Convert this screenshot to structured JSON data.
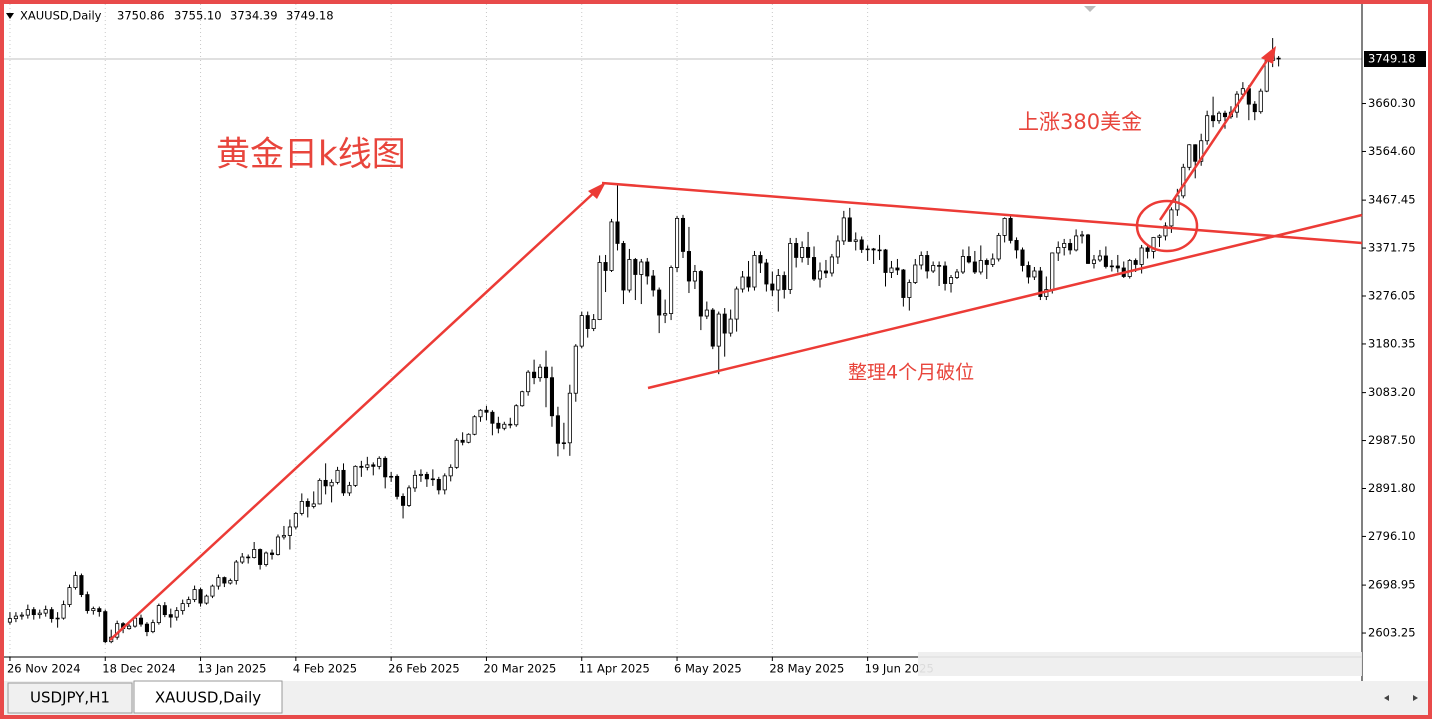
{
  "header": {
    "symbol": "XAUUSD,Daily",
    "ohlc_labels": [
      "3750.86",
      "3755.10",
      "3734.39",
      "3749.18"
    ]
  },
  "annotations": [
    "黄金日k线图",
    "上涨380美金",
    "整理4个月破位"
  ],
  "tabs": [
    "USDJPY,H1",
    "XAUUSD,Daily"
  ],
  "chart_data": {
    "type": "candlestick",
    "bull_color": "#ffffff",
    "bear_color": "#000000",
    "grid": true,
    "ylim": [
      2555.4,
      3851
    ],
    "xlim": [
      -1,
      227
    ],
    "yticks": [
      {
        "value": 3660.3,
        "label": "3660.30"
      },
      {
        "value": 3564.6,
        "label": "3564.60"
      },
      3467.45,
      3371.75,
      3276.05,
      3180.35,
      {
        "value": 3083.2,
        "label": "3083.20"
      },
      {
        "value": 2987.5,
        "label": "2987.50"
      },
      {
        "value": 2891.8,
        "label": "2891.80"
      },
      {
        "value": 2796.1,
        "label": "2796.10"
      },
      2698.95,
      2603.25
    ],
    "xticks": [
      {
        "value": 0,
        "label": "26 Nov 2024"
      },
      {
        "value": 16,
        "label": "18 Dec 2024"
      },
      {
        "value": 32,
        "label": "13 Jan 2025"
      },
      {
        "value": 48,
        "label": "4 Feb 2025"
      },
      {
        "value": 64,
        "label": "26 Feb 2025"
      },
      {
        "value": 80,
        "label": "20 Mar 2025"
      },
      {
        "value": 96,
        "label": "11 Apr 2025"
      },
      {
        "value": 112,
        "label": "6 May 2025"
      },
      {
        "value": 128,
        "label": "28 May 2025"
      },
      {
        "value": 144,
        "label": "19 Jun 2025"
      }
    ],
    "candles": [
      [
        2625,
        2645,
        2620,
        2632
      ],
      [
        2632,
        2645,
        2625,
        2637
      ],
      [
        2637,
        2645,
        2630,
        2639
      ],
      [
        2639,
        2660,
        2632,
        2650
      ],
      [
        2650,
        2655,
        2630,
        2640
      ],
      [
        2640,
        2650,
        2632,
        2643
      ],
      [
        2643,
        2658,
        2636,
        2650
      ],
      [
        2650,
        2655,
        2624,
        2632
      ],
      [
        2633,
        2645,
        2614,
        2633
      ],
      [
        2633,
        2668,
        2630,
        2660
      ],
      [
        2660,
        2700,
        2655,
        2694
      ],
      [
        2694,
        2726,
        2690,
        2718
      ],
      [
        2718,
        2722,
        2675,
        2680
      ],
      [
        2680,
        2686,
        2642,
        2648
      ],
      [
        2648,
        2656,
        2640,
        2652
      ],
      [
        2652,
        2656,
        2636,
        2646
      ],
      [
        2646,
        2650,
        2583,
        2586
      ],
      [
        2586,
        2610,
        2583,
        2595
      ],
      [
        2595,
        2628,
        2590,
        2622
      ],
      [
        2622,
        2625,
        2603,
        2612
      ],
      [
        2612,
        2621,
        2610,
        2617
      ],
      [
        2617,
        2638,
        2614,
        2633
      ],
      [
        2633,
        2640,
        2616,
        2621
      ],
      [
        2621,
        2625,
        2597,
        2606
      ],
      [
        2606,
        2630,
        2603,
        2624
      ],
      [
        2624,
        2662,
        2620,
        2658
      ],
      [
        2658,
        2665,
        2635,
        2640
      ],
      [
        2640,
        2652,
        2614,
        2635
      ],
      [
        2635,
        2655,
        2628,
        2648
      ],
      [
        2648,
        2670,
        2640,
        2662
      ],
      [
        2662,
        2676,
        2655,
        2670
      ],
      [
        2670,
        2698,
        2665,
        2690
      ],
      [
        2690,
        2694,
        2656,
        2663
      ],
      [
        2663,
        2680,
        2660,
        2677
      ],
      [
        2677,
        2700,
        2673,
        2697
      ],
      [
        2697,
        2720,
        2690,
        2714
      ],
      [
        2714,
        2716,
        2695,
        2703
      ],
      [
        2703,
        2712,
        2700,
        2708
      ],
      [
        2708,
        2749,
        2700,
        2745
      ],
      [
        2745,
        2763,
        2741,
        2755
      ],
      [
        2755,
        2760,
        2742,
        2754
      ],
      [
        2754,
        2785,
        2752,
        2770
      ],
      [
        2770,
        2772,
        2730,
        2740
      ],
      [
        2740,
        2766,
        2736,
        2763
      ],
      [
        2763,
        2770,
        2750,
        2760
      ],
      [
        2760,
        2800,
        2758,
        2795
      ],
      [
        2795,
        2817,
        2790,
        2798
      ],
      [
        2798,
        2830,
        2770,
        2815
      ],
      [
        2815,
        2845,
        2810,
        2842
      ],
      [
        2842,
        2882,
        2838,
        2866
      ],
      [
        2866,
        2872,
        2834,
        2856
      ],
      [
        2856,
        2886,
        2852,
        2861
      ],
      [
        2861,
        2912,
        2860,
        2908
      ],
      [
        2908,
        2942,
        2880,
        2897
      ],
      [
        2897,
        2910,
        2864,
        2904
      ],
      [
        2904,
        2935,
        2900,
        2928
      ],
      [
        2928,
        2942,
        2877,
        2883
      ],
      [
        2883,
        2905,
        2877,
        2898
      ],
      [
        2898,
        2938,
        2895,
        2936
      ],
      [
        2936,
        2947,
        2915,
        2934
      ],
      [
        2934,
        2955,
        2928,
        2939
      ],
      [
        2939,
        2944,
        2918,
        2936
      ],
      [
        2936,
        2956,
        2930,
        2952
      ],
      [
        2952,
        2956,
        2892,
        2915
      ],
      [
        2915,
        2925,
        2905,
        2916
      ],
      [
        2916,
        2920,
        2870,
        2876
      ],
      [
        2876,
        2882,
        2832,
        2858
      ],
      [
        2858,
        2898,
        2855,
        2893
      ],
      [
        2893,
        2928,
        2885,
        2918
      ],
      [
        2918,
        2930,
        2905,
        2920
      ],
      [
        2920,
        2925,
        2895,
        2911
      ],
      [
        2911,
        2930,
        2897,
        2910
      ],
      [
        2910,
        2915,
        2880,
        2889
      ],
      [
        2889,
        2922,
        2880,
        2917
      ],
      [
        2917,
        2940,
        2906,
        2934
      ],
      [
        2934,
        2992,
        2931,
        2988
      ],
      [
        2988,
        3004,
        2978,
        2984
      ],
      [
        2984,
        3002,
        2982,
        3000
      ],
      [
        3000,
        3038,
        2998,
        3035
      ],
      [
        3035,
        3050,
        3025,
        3048
      ],
      [
        3048,
        3057,
        3028,
        3044
      ],
      [
        3044,
        3048,
        2998,
        3022
      ],
      [
        3022,
        3035,
        3002,
        3012
      ],
      [
        3012,
        3025,
        3008,
        3020
      ],
      [
        3020,
        3033,
        3012,
        3019
      ],
      [
        3019,
        3060,
        3015,
        3057
      ],
      [
        3057,
        3087,
        3055,
        3085
      ],
      [
        3085,
        3128,
        3077,
        3124
      ],
      [
        3124,
        3149,
        3100,
        3113
      ],
      [
        3113,
        3140,
        3105,
        3134
      ],
      [
        3134,
        3167,
        3054,
        3113
      ],
      [
        3113,
        3135,
        3015,
        3037
      ],
      [
        3037,
        3055,
        2956,
        2982
      ],
      [
        2982,
        3023,
        2970,
        2983
      ],
      [
        2983,
        3099,
        2957,
        3082
      ],
      [
        3082,
        3180,
        3065,
        3176
      ],
      [
        3176,
        3245,
        3172,
        3237
      ],
      [
        3237,
        3245,
        3193,
        3211
      ],
      [
        3211,
        3240,
        3206,
        3229
      ],
      [
        3229,
        3357,
        3228,
        3343
      ],
      [
        3343,
        3358,
        3284,
        3327
      ],
      [
        3327,
        3430,
        3324,
        3424
      ],
      [
        3424,
        3500,
        3367,
        3381
      ],
      [
        3381,
        3386,
        3260,
        3288
      ],
      [
        3288,
        3370,
        3283,
        3349
      ],
      [
        3349,
        3352,
        3268,
        3319
      ],
      [
        3319,
        3350,
        3260,
        3344
      ],
      [
        3344,
        3352,
        3299,
        3316
      ],
      [
        3316,
        3328,
        3275,
        3288
      ],
      [
        3288,
        3293,
        3202,
        3238
      ],
      [
        3238,
        3269,
        3222,
        3241
      ],
      [
        3241,
        3337,
        3228,
        3333
      ],
      [
        3333,
        3436,
        3324,
        3431
      ],
      [
        3431,
        3438,
        3352,
        3365
      ],
      [
        3365,
        3414,
        3282,
        3306
      ],
      [
        3306,
        3338,
        3290,
        3325
      ],
      [
        3325,
        3328,
        3208,
        3236
      ],
      [
        3236,
        3265,
        3230,
        3248
      ],
      [
        3248,
        3252,
        3170,
        3176
      ],
      [
        3176,
        3245,
        3120,
        3240
      ],
      [
        3240,
        3252,
        3155,
        3202
      ],
      [
        3202,
        3249,
        3195,
        3230
      ],
      [
        3230,
        3295,
        3205,
        3290
      ],
      [
        3290,
        3326,
        3283,
        3314
      ],
      [
        3314,
        3346,
        3285,
        3294
      ],
      [
        3294,
        3366,
        3287,
        3357
      ],
      [
        3357,
        3365,
        3322,
        3342
      ],
      [
        3342,
        3350,
        3285,
        3300
      ],
      [
        3300,
        3325,
        3276,
        3288
      ],
      [
        3288,
        3330,
        3245,
        3317
      ],
      [
        3317,
        3325,
        3271,
        3289
      ],
      [
        3289,
        3392,
        3280,
        3381
      ],
      [
        3381,
        3392,
        3333,
        3353
      ],
      [
        3353,
        3385,
        3343,
        3373
      ],
      [
        3373,
        3404,
        3338,
        3353
      ],
      [
        3353,
        3375,
        3306,
        3310
      ],
      [
        3310,
        3343,
        3293,
        3326
      ],
      [
        3326,
        3348,
        3312,
        3322
      ],
      [
        3322,
        3360,
        3315,
        3354
      ],
      [
        3354,
        3397,
        3340,
        3386
      ],
      [
        3386,
        3446,
        3378,
        3432
      ],
      [
        3432,
        3452,
        3385,
        3385
      ],
      [
        3385,
        3403,
        3367,
        3388
      ],
      [
        3388,
        3395,
        3362,
        3369
      ],
      [
        3369,
        3377,
        3346,
        3370
      ],
      [
        3370,
        3372,
        3340,
        3368
      ],
      [
        3368,
        3398,
        3348,
        3368
      ],
      [
        3368,
        3370,
        3295,
        3323
      ],
      [
        3323,
        3346,
        3312,
        3332
      ],
      [
        3332,
        3350,
        3318,
        3328
      ],
      [
        3328,
        3330,
        3255,
        3273
      ],
      [
        3273,
        3309,
        3247,
        3303
      ],
      [
        3303,
        3350,
        3300,
        3338
      ],
      [
        3338,
        3365,
        3329,
        3357
      ],
      [
        3357,
        3366,
        3311,
        3326
      ],
      [
        3326,
        3345,
        3322,
        3337
      ],
      [
        3337,
        3345,
        3296,
        3336
      ],
      [
        3336,
        3345,
        3287,
        3301
      ],
      [
        3301,
        3318,
        3283,
        3313
      ],
      [
        3313,
        3330,
        3310,
        3324
      ],
      [
        3324,
        3369,
        3320,
        3355
      ],
      [
        3355,
        3375,
        3341,
        3344
      ],
      [
        3344,
        3366,
        3320,
        3324
      ],
      [
        3324,
        3377,
        3319,
        3347
      ],
      [
        3347,
        3351,
        3310,
        3339
      ],
      [
        3339,
        3361,
        3334,
        3350
      ],
      [
        3350,
        3402,
        3345,
        3397
      ],
      [
        3397,
        3433,
        3383,
        3431
      ],
      [
        3431,
        3438,
        3381,
        3387
      ],
      [
        3387,
        3393,
        3351,
        3368
      ],
      [
        3368,
        3373,
        3325,
        3337
      ],
      [
        3337,
        3345,
        3301,
        3314
      ],
      [
        3314,
        3334,
        3308,
        3326
      ],
      [
        3326,
        3334,
        3268,
        3275
      ],
      [
        3275,
        3315,
        3268,
        3289
      ],
      [
        3289,
        3363,
        3281,
        3362
      ],
      [
        3362,
        3385,
        3346,
        3373
      ],
      [
        3373,
        3390,
        3357,
        3381
      ],
      [
        3381,
        3390,
        3359,
        3368
      ],
      [
        3368,
        3409,
        3365,
        3396
      ],
      [
        3396,
        3406,
        3381,
        3398
      ],
      [
        3398,
        3400,
        3340,
        3341
      ],
      [
        3341,
        3358,
        3331,
        3348
      ],
      [
        3348,
        3368,
        3344,
        3356
      ],
      [
        3356,
        3375,
        3331,
        3335
      ],
      [
        3335,
        3348,
        3325,
        3336
      ],
      [
        3336,
        3358,
        3323,
        3332
      ],
      [
        3332,
        3345,
        3312,
        3315
      ],
      [
        3315,
        3350,
        3311,
        3347
      ],
      [
        3347,
        3351,
        3324,
        3339
      ],
      [
        3339,
        3378,
        3321,
        3372
      ],
      [
        3372,
        3376,
        3351,
        3365
      ],
      [
        3365,
        3394,
        3351,
        3393
      ],
      [
        3393,
        3399,
        3374,
        3396
      ],
      [
        3396,
        3423,
        3387,
        3416
      ],
      [
        3416,
        3453,
        3402,
        3448
      ],
      [
        3448,
        3490,
        3436,
        3476
      ],
      [
        3476,
        3540,
        3471,
        3533
      ],
      [
        3533,
        3579,
        3527,
        3578
      ],
      [
        3578,
        3579,
        3511,
        3545
      ],
      [
        3545,
        3600,
        3536,
        3586
      ],
      [
        3586,
        3646,
        3578,
        3636
      ],
      [
        3636,
        3674,
        3613,
        3626
      ],
      [
        3626,
        3645,
        3620,
        3641
      ],
      [
        3641,
        3646,
        3610,
        3634
      ],
      [
        3634,
        3655,
        3630,
        3643
      ],
      [
        3643,
        3685,
        3632,
        3679
      ],
      [
        3679,
        3703,
        3670,
        3690
      ],
      [
        3690,
        3697,
        3627,
        3659
      ],
      [
        3659,
        3665,
        3627,
        3644
      ],
      [
        3644,
        3690,
        3640,
        3685
      ],
      [
        3685,
        3749,
        3683,
        3746
      ],
      [
        3746,
        3791,
        3733,
        3764
      ],
      [
        3750.86,
        3755.1,
        3734.39,
        3749.18
      ]
    ]
  }
}
